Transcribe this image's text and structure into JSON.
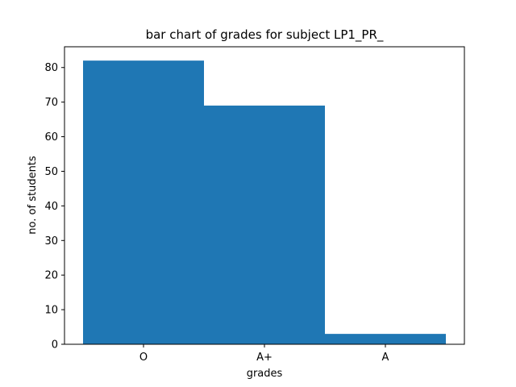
{
  "chart_data": {
    "type": "bar",
    "title": "bar chart of grades for subject LP1_PR_",
    "xlabel": "grades",
    "ylabel": "no. of students",
    "categories": [
      "O",
      "A+",
      "A"
    ],
    "values": [
      82,
      69,
      3
    ],
    "ylim": [
      0,
      86
    ],
    "yticks": [
      0,
      10,
      20,
      30,
      40,
      50,
      60,
      70,
      80
    ],
    "bar_color": "#1f77b4",
    "grid": false,
    "legend": "none"
  }
}
